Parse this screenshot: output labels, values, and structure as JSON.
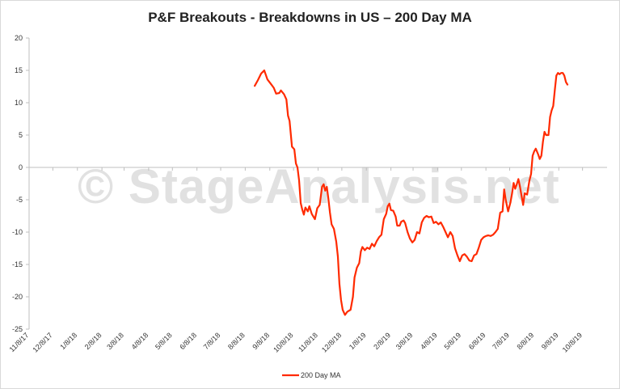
{
  "chart_data": {
    "type": "line",
    "title": "P&F Breakouts - Breakdowns in US – 200 Day MA",
    "xlabel": "",
    "ylabel": "",
    "ylim": [
      -25,
      20
    ],
    "yticks": [
      "20",
      "15",
      "10",
      "5",
      "0",
      "-5",
      "-10",
      "-15",
      "-20",
      "-25"
    ],
    "xlim": [
      "2017-11-08",
      "2019-11-08"
    ],
    "xtick_labels": [
      "11/8/17",
      "12/8/17",
      "1/8/18",
      "2/8/18",
      "3/8/18",
      "4/8/18",
      "5/8/18",
      "6/8/18",
      "7/8/18",
      "8/8/18",
      "9/8/18",
      "10/8/18",
      "11/8/18",
      "12/8/18",
      "1/8/19",
      "2/8/19",
      "3/8/19",
      "4/8/19",
      "5/8/19",
      "6/8/19",
      "7/8/19",
      "8/8/19",
      "9/8/19",
      "10/8/19"
    ],
    "xtick_dates": [
      "2017-11-08",
      "2017-12-08",
      "2018-01-08",
      "2018-02-08",
      "2018-03-08",
      "2018-04-08",
      "2018-05-08",
      "2018-06-08",
      "2018-07-08",
      "2018-08-08",
      "2018-09-08",
      "2018-10-08",
      "2018-11-08",
      "2018-12-08",
      "2019-01-08",
      "2019-02-08",
      "2019-03-08",
      "2019-04-08",
      "2019-05-08",
      "2019-06-08",
      "2019-07-08",
      "2019-08-08",
      "2019-09-08",
      "2019-10-08"
    ],
    "grid": false,
    "legend_position": "bottom",
    "series": [
      {
        "name": "200 Day MA",
        "color": "#ff2a00",
        "points": [
          [
            "2018-08-20",
            12.6
          ],
          [
            "2018-08-24",
            13.5
          ],
          [
            "2018-08-28",
            14.5
          ],
          [
            "2018-09-01",
            15.0
          ],
          [
            "2018-09-05",
            13.6
          ],
          [
            "2018-09-10",
            12.8
          ],
          [
            "2018-09-13",
            12.3
          ],
          [
            "2018-09-16",
            11.4
          ],
          [
            "2018-09-20",
            11.5
          ],
          [
            "2018-09-22",
            11.9
          ],
          [
            "2018-09-26",
            11.3
          ],
          [
            "2018-09-29",
            10.5
          ],
          [
            "2018-10-01",
            8.0
          ],
          [
            "2018-10-03",
            7.2
          ],
          [
            "2018-10-06",
            3.2
          ],
          [
            "2018-10-09",
            2.8
          ],
          [
            "2018-10-11",
            0.6
          ],
          [
            "2018-10-13",
            0.0
          ],
          [
            "2018-10-15",
            -2.0
          ],
          [
            "2018-10-17",
            -5.5
          ],
          [
            "2018-10-19",
            -6.5
          ],
          [
            "2018-10-21",
            -7.3
          ],
          [
            "2018-10-23",
            -6.2
          ],
          [
            "2018-10-26",
            -6.8
          ],
          [
            "2018-10-28",
            -6.0
          ],
          [
            "2018-10-31",
            -7.2
          ],
          [
            "2018-11-04",
            -8.0
          ],
          [
            "2018-11-07",
            -6.3
          ],
          [
            "2018-11-10",
            -5.8
          ],
          [
            "2018-11-13",
            -3.0
          ],
          [
            "2018-11-15",
            -2.6
          ],
          [
            "2018-11-17",
            -3.6
          ],
          [
            "2018-11-19",
            -3.0
          ],
          [
            "2018-11-21",
            -4.8
          ],
          [
            "2018-11-23",
            -7.0
          ],
          [
            "2018-11-25",
            -8.8
          ],
          [
            "2018-11-28",
            -9.5
          ],
          [
            "2018-12-01",
            -11.5
          ],
          [
            "2018-12-03",
            -13.8
          ],
          [
            "2018-12-05",
            -18.0
          ],
          [
            "2018-12-07",
            -20.5
          ],
          [
            "2018-12-09",
            -22.0
          ],
          [
            "2018-12-12",
            -22.8
          ],
          [
            "2018-12-15",
            -22.3
          ],
          [
            "2018-12-19",
            -22.0
          ],
          [
            "2018-12-22",
            -20.0
          ],
          [
            "2018-12-24",
            -17.0
          ],
          [
            "2018-12-27",
            -15.5
          ],
          [
            "2018-12-30",
            -14.8
          ],
          [
            "2019-01-01",
            -13.0
          ],
          [
            "2019-01-03",
            -12.3
          ],
          [
            "2019-01-06",
            -12.8
          ],
          [
            "2019-01-09",
            -12.4
          ],
          [
            "2019-01-12",
            -12.6
          ],
          [
            "2019-01-15",
            -11.8
          ],
          [
            "2019-01-18",
            -12.2
          ],
          [
            "2019-01-21",
            -11.4
          ],
          [
            "2019-01-24",
            -10.8
          ],
          [
            "2019-01-27",
            -10.4
          ],
          [
            "2019-01-30",
            -8.0
          ],
          [
            "2019-02-02",
            -7.2
          ],
          [
            "2019-02-04",
            -6.0
          ],
          [
            "2019-02-06",
            -5.6
          ],
          [
            "2019-02-08",
            -6.6
          ],
          [
            "2019-02-11",
            -6.7
          ],
          [
            "2019-02-14",
            -7.6
          ],
          [
            "2019-02-16",
            -9.0
          ],
          [
            "2019-02-19",
            -9.0
          ],
          [
            "2019-02-21",
            -8.4
          ],
          [
            "2019-02-24",
            -8.2
          ],
          [
            "2019-02-26",
            -8.6
          ],
          [
            "2019-03-01",
            -10.0
          ],
          [
            "2019-03-04",
            -11.0
          ],
          [
            "2019-03-07",
            -11.6
          ],
          [
            "2019-03-10",
            -11.2
          ],
          [
            "2019-03-13",
            -10.0
          ],
          [
            "2019-03-16",
            -10.2
          ],
          [
            "2019-03-19",
            -8.5
          ],
          [
            "2019-03-22",
            -7.8
          ],
          [
            "2019-03-25",
            -7.5
          ],
          [
            "2019-03-28",
            -7.7
          ],
          [
            "2019-03-31",
            -7.6
          ],
          [
            "2019-04-03",
            -8.6
          ],
          [
            "2019-04-06",
            -8.4
          ],
          [
            "2019-04-09",
            -8.8
          ],
          [
            "2019-04-12",
            -8.5
          ],
          [
            "2019-04-15",
            -9.2
          ],
          [
            "2019-04-18",
            -10.0
          ],
          [
            "2019-04-21",
            -10.8
          ],
          [
            "2019-04-24",
            -10.0
          ],
          [
            "2019-04-27",
            -10.6
          ],
          [
            "2019-04-30",
            -12.5
          ],
          [
            "2019-05-03",
            -13.6
          ],
          [
            "2019-05-06",
            -14.5
          ],
          [
            "2019-05-09",
            -13.6
          ],
          [
            "2019-05-12",
            -13.4
          ],
          [
            "2019-05-15",
            -13.8
          ],
          [
            "2019-05-18",
            -14.4
          ],
          [
            "2019-05-21",
            -14.5
          ],
          [
            "2019-05-24",
            -13.6
          ],
          [
            "2019-05-27",
            -13.4
          ],
          [
            "2019-05-30",
            -12.4
          ],
          [
            "2019-06-02",
            -11.2
          ],
          [
            "2019-06-05",
            -10.8
          ],
          [
            "2019-06-08",
            -10.6
          ],
          [
            "2019-06-11",
            -10.5
          ],
          [
            "2019-06-14",
            -10.6
          ],
          [
            "2019-06-17",
            -10.4
          ],
          [
            "2019-06-20",
            -10.0
          ],
          [
            "2019-06-23",
            -9.5
          ],
          [
            "2019-06-26",
            -7.0
          ],
          [
            "2019-06-29",
            -6.8
          ],
          [
            "2019-07-01",
            -3.4
          ],
          [
            "2019-07-03",
            -5.0
          ],
          [
            "2019-07-06",
            -6.8
          ],
          [
            "2019-07-09",
            -5.4
          ],
          [
            "2019-07-11",
            -4.0
          ],
          [
            "2019-07-13",
            -2.4
          ],
          [
            "2019-07-15",
            -3.3
          ],
          [
            "2019-07-17",
            -2.6
          ],
          [
            "2019-07-19",
            -1.8
          ],
          [
            "2019-07-21",
            -3.0
          ],
          [
            "2019-07-23",
            -4.4
          ],
          [
            "2019-07-25",
            -5.8
          ],
          [
            "2019-07-27",
            -4.0
          ],
          [
            "2019-07-30",
            -4.2
          ],
          [
            "2019-08-02",
            -2.0
          ],
          [
            "2019-08-04",
            -1.0
          ],
          [
            "2019-08-06",
            1.8
          ],
          [
            "2019-08-08",
            2.5
          ],
          [
            "2019-08-10",
            2.9
          ],
          [
            "2019-08-13",
            2.0
          ],
          [
            "2019-08-15",
            1.3
          ],
          [
            "2019-08-17",
            1.8
          ],
          [
            "2019-08-19",
            4.0
          ],
          [
            "2019-08-21",
            5.5
          ],
          [
            "2019-08-23",
            5.0
          ],
          [
            "2019-08-26",
            5.0
          ],
          [
            "2019-08-28",
            7.8
          ],
          [
            "2019-08-30",
            8.8
          ],
          [
            "2019-09-01",
            9.5
          ],
          [
            "2019-09-03",
            12.0
          ],
          [
            "2019-09-05",
            14.2
          ],
          [
            "2019-09-07",
            14.6
          ],
          [
            "2019-09-09",
            14.4
          ],
          [
            "2019-09-11",
            14.6
          ],
          [
            "2019-09-13",
            14.6
          ],
          [
            "2019-09-15",
            14.2
          ],
          [
            "2019-09-17",
            13.2
          ],
          [
            "2019-09-19",
            12.8
          ]
        ]
      }
    ],
    "watermark": "© StageAnalysis.net"
  }
}
